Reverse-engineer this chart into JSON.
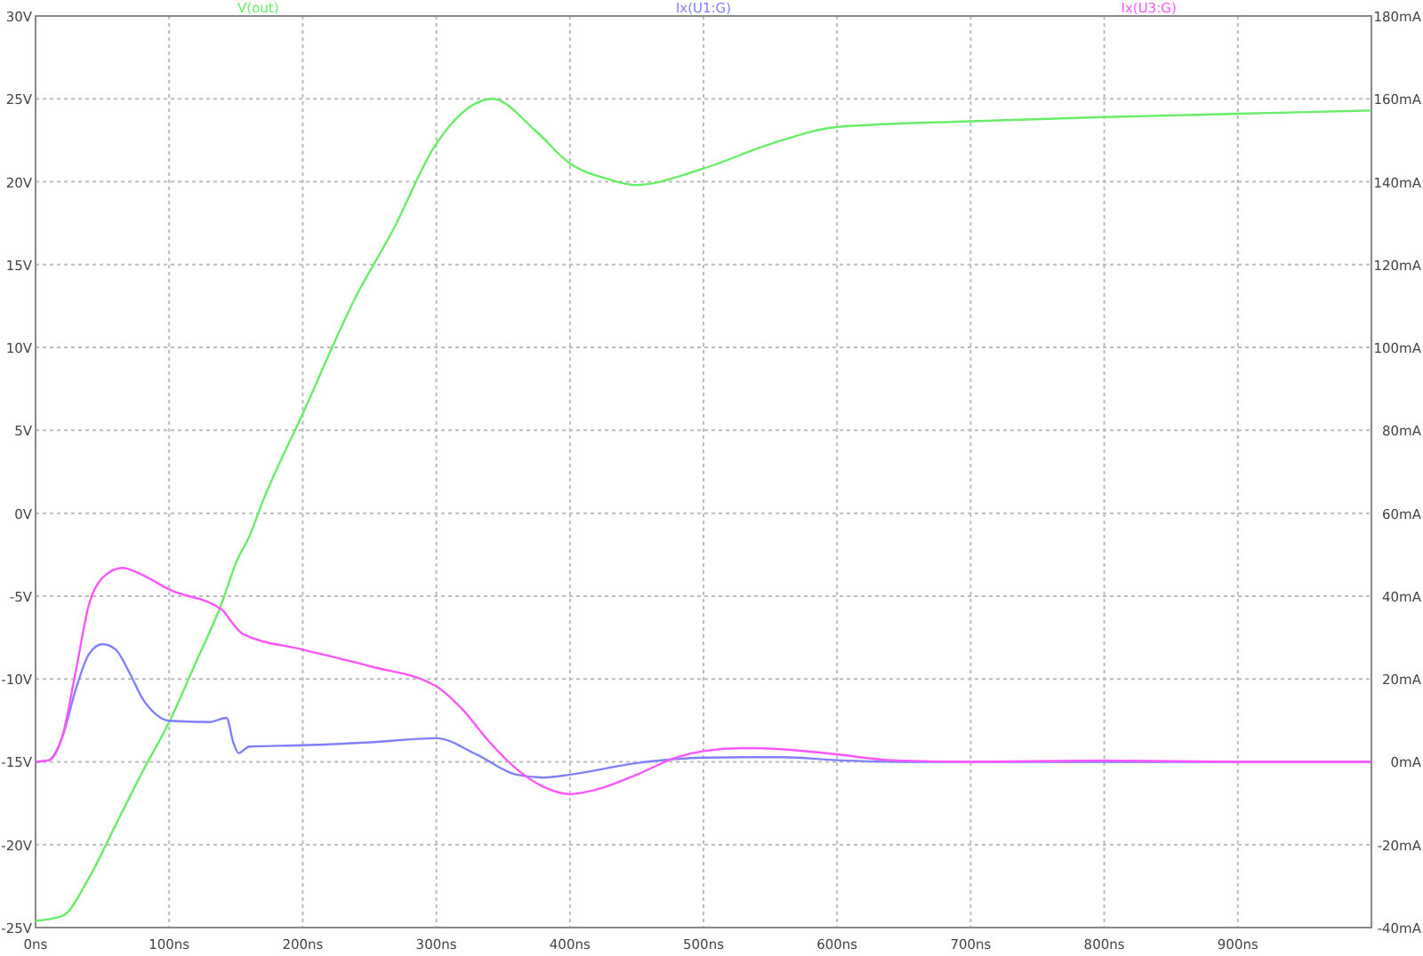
{
  "chart_data": {
    "type": "line",
    "xlim": [
      0,
      1000
    ],
    "xticks": [
      {
        "value": 0,
        "label": "0ns"
      },
      {
        "value": 100,
        "label": "100ns"
      },
      {
        "value": 200,
        "label": "200ns"
      },
      {
        "value": 300,
        "label": "300ns"
      },
      {
        "value": 400,
        "label": "400ns"
      },
      {
        "value": 500,
        "label": "500ns"
      },
      {
        "value": 600,
        "label": "600ns"
      },
      {
        "value": 700,
        "label": "700ns"
      },
      {
        "value": 800,
        "label": "800ns"
      },
      {
        "value": 900,
        "label": "900ns"
      }
    ],
    "ylim": [
      -25,
      30
    ],
    "yticks": [
      {
        "value": -25,
        "label": "-25V"
      },
      {
        "value": -20,
        "label": "-20V"
      },
      {
        "value": -15,
        "label": "-15V"
      },
      {
        "value": -10,
        "label": "-10V"
      },
      {
        "value": -5,
        "label": "-5V"
      },
      {
        "value": 0,
        "label": "0V"
      },
      {
        "value": 5,
        "label": "5V"
      },
      {
        "value": 10,
        "label": "10V"
      },
      {
        "value": 15,
        "label": "15V"
      },
      {
        "value": 20,
        "label": "20V"
      },
      {
        "value": 25,
        "label": "25V"
      },
      {
        "value": 30,
        "label": "30V"
      }
    ],
    "y2lim": [
      -40,
      180
    ],
    "y2ticks": [
      {
        "value": -40,
        "label": "-40mA"
      },
      {
        "value": -20,
        "label": "-20mA"
      },
      {
        "value": 0,
        "label": "0mA"
      },
      {
        "value": 20,
        "label": "20mA"
      },
      {
        "value": 40,
        "label": "40mA"
      },
      {
        "value": 60,
        "label": "60mA"
      },
      {
        "value": 80,
        "label": "80mA"
      },
      {
        "value": 100,
        "label": "100mA"
      },
      {
        "value": 120,
        "label": "120mA"
      },
      {
        "value": 140,
        "label": "140mA"
      },
      {
        "value": 160,
        "label": "160mA"
      },
      {
        "value": 180,
        "label": "180mA"
      }
    ],
    "grid": true,
    "legend": "top",
    "marker": "none",
    "line_style": "solid",
    "series": [
      {
        "name": "V(out)",
        "color": "#66ee66",
        "x": [
          0,
          20,
          40,
          60,
          80,
          100,
          120,
          140,
          150,
          160,
          170,
          200,
          240,
          267,
          300,
          342,
          374,
          400,
          427,
          449,
          500,
          551,
          600,
          700,
          800,
          900,
          1000
        ],
        "values": [
          -24.6,
          -24.3,
          -22,
          -18.8,
          -15.6,
          -12.6,
          -9,
          -5.3,
          -3,
          -1.4,
          0.7,
          6,
          13.1,
          17,
          22.3,
          25,
          23.1,
          21.1,
          20.2,
          19.8,
          20.8,
          22.3,
          23.3,
          23.65,
          23.9,
          24.1,
          24.3
        ]
      },
      {
        "name": "Ix(U1:G)",
        "color": "#8080ff",
        "axis": "y2",
        "x": [
          0,
          10,
          20,
          30,
          40,
          50,
          60,
          70,
          80,
          90,
          100,
          130,
          143,
          148,
          152,
          160,
          200,
          250,
          300,
          330,
          360,
          380,
          400,
          450,
          500,
          530,
          560,
          600,
          650,
          700,
          800,
          900,
          1000
        ],
        "values": [
          0,
          0.4,
          6,
          17.4,
          26,
          28.4,
          27.1,
          21.7,
          15.3,
          11.5,
          9.9,
          9.6,
          10.6,
          4.7,
          2.1,
          3.7,
          4,
          4.7,
          5.7,
          1.8,
          -3.1,
          -3.8,
          -3.1,
          -0.3,
          1,
          1.1,
          1.1,
          0.4,
          0,
          0,
          0,
          0,
          0
        ]
      },
      {
        "name": "Ix(U3:G)",
        "color": "#ff55ff",
        "axis": "y2",
        "x": [
          0,
          10,
          20,
          30,
          40,
          50,
          65,
          80,
          100,
          140,
          145,
          155,
          200,
          250,
          300,
          320,
          340,
          360,
          380,
          400,
          420,
          450,
          480,
          500,
          530,
          560,
          600,
          640,
          700,
          800,
          900,
          1000
        ],
        "values": [
          0,
          0.4,
          6.1,
          21.7,
          38,
          44.4,
          46.8,
          45.1,
          41.6,
          36.6,
          34.5,
          30.9,
          27.1,
          23.1,
          18.2,
          12.5,
          4.7,
          -1.7,
          -6,
          -7.8,
          -6.7,
          -3.1,
          1.1,
          2.6,
          3.3,
          3,
          1.8,
          0.4,
          0,
          0.3,
          0,
          0
        ]
      }
    ]
  }
}
